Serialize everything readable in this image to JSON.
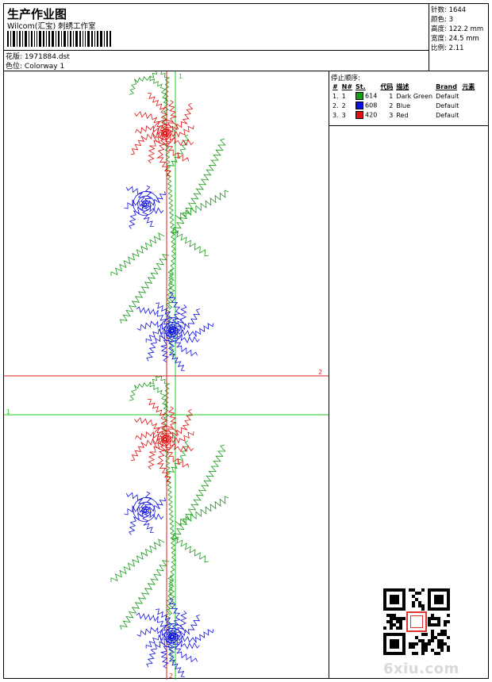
{
  "header": {
    "title": "生产作业图",
    "studio": "Wilcom(汇宝) 刺绣工作室",
    "design_label": "花版:",
    "design_value": "1971884.dst",
    "colorway_label": "色位:",
    "colorway_value": "Colorway 1"
  },
  "stats": [
    {
      "label": "针数:",
      "value": "1644"
    },
    {
      "label": "颜色:",
      "value": "3"
    },
    {
      "label": "高度:",
      "value": "122.2 mm"
    },
    {
      "label": "宽度:",
      "value": "24.5 mm"
    },
    {
      "label": "比例:",
      "value": "2.11"
    }
  ],
  "stop_sequence": {
    "title": "停止顺序:",
    "columns": [
      "#",
      "N#",
      "St.",
      "代码",
      "描述",
      "Brand",
      "元素"
    ],
    "rows": [
      {
        "num": "1.",
        "n": "1",
        "color": "#1a9a1a",
        "st": "614",
        "code": "1",
        "desc": "Dark Green",
        "brand": "Default",
        "elem": ""
      },
      {
        "num": "2.",
        "n": "2",
        "color": "#1010e0",
        "st": "608",
        "code": "2",
        "desc": "Blue",
        "brand": "Default",
        "elem": ""
      },
      {
        "num": "3.",
        "n": "3",
        "color": "#e01010",
        "st": "420",
        "code": "3",
        "desc": "Red",
        "brand": "Default",
        "elem": ""
      }
    ]
  },
  "guides": {
    "v1_label": "1",
    "h1_label": "1",
    "h2_label": "2",
    "v2_label": "2",
    "green": "#22cc22",
    "red": "#dd2222"
  },
  "embroidery_colors": {
    "green": "#1a9a1a",
    "blue": "#1010e0",
    "red": "#e01010"
  },
  "watermark": "6xiu.com"
}
